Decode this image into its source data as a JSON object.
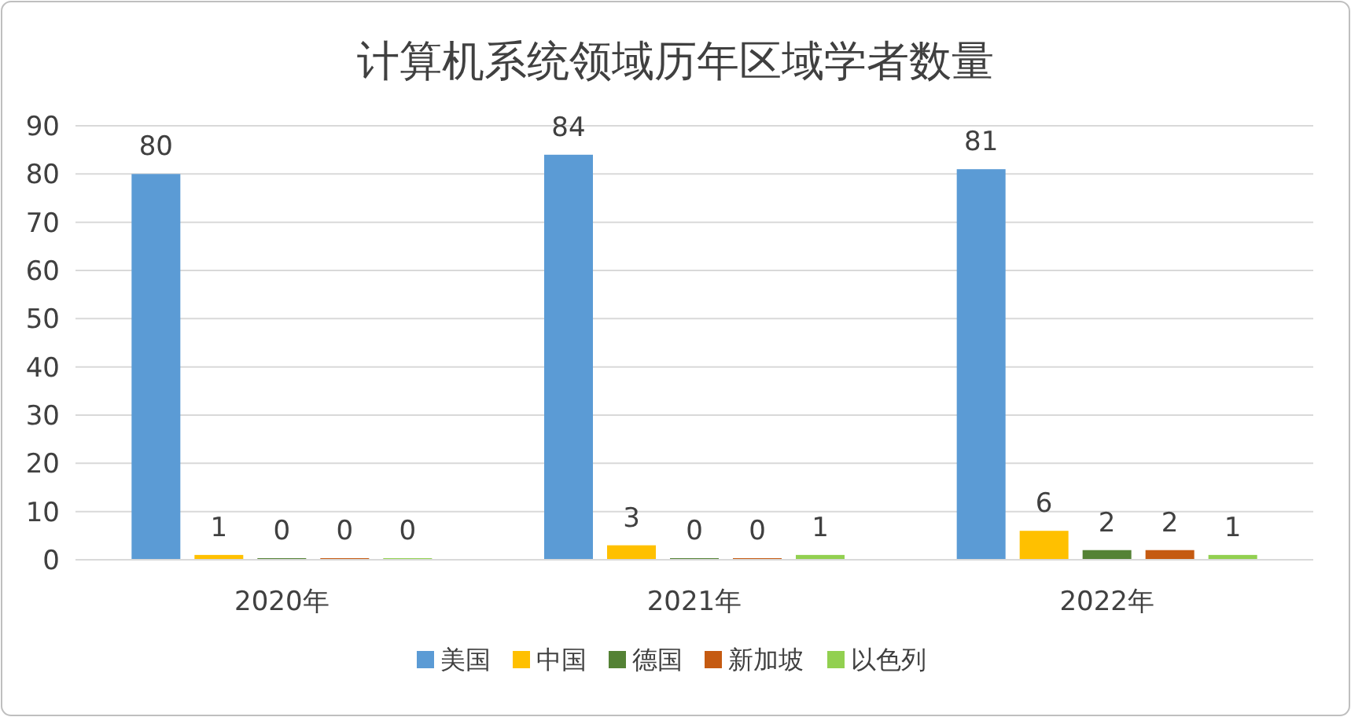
{
  "chart_data": {
    "type": "bar",
    "title": "计算机系统领域历年区域学者数量",
    "categories": [
      "2020年",
      "2021年",
      "2022年"
    ],
    "series": [
      {
        "name": "美国",
        "color": "#5b9bd5",
        "values": [
          80,
          84,
          81
        ]
      },
      {
        "name": "中国",
        "color": "#ffc000",
        "values": [
          1,
          3,
          6
        ]
      },
      {
        "name": "德国",
        "color": "#548235",
        "values": [
          0,
          0,
          2
        ]
      },
      {
        "name": "新加坡",
        "color": "#c55a11",
        "values": [
          0,
          0,
          2
        ]
      },
      {
        "name": "以色列",
        "color": "#92d050",
        "values": [
          0,
          1,
          1
        ]
      }
    ],
    "ylim": [
      0,
      90
    ],
    "yticks": [
      0,
      10,
      20,
      30,
      40,
      50,
      60,
      70,
      80,
      90
    ],
    "grid": "y",
    "legend": "bottom",
    "data_labels": true
  }
}
